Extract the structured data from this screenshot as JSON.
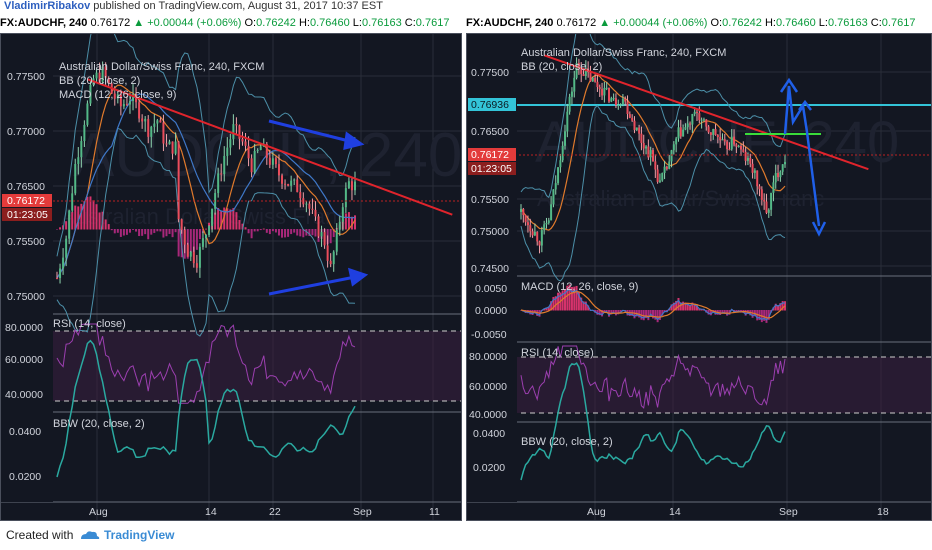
{
  "publish_bar": {
    "author": "VladimirRibakov",
    "text": "published on TradingView.com, August 31, 2017 10:37 EST"
  },
  "footer": {
    "created_with": "Created with",
    "brand": "TradingView"
  },
  "panels": [
    {
      "header": {
        "symbol": "FX:AUDCHF, 240",
        "price": "0.76172",
        "change": "+0.00044 (+0.06%)",
        "o_label": "O:",
        "o": "0.76242",
        "h_label": "H:",
        "h": "0.76460",
        "l_label": "L:",
        "l": "0.76163",
        "c_label": "C:",
        "c": "0.7617"
      },
      "legend": [
        "Australian Dollar/Swiss Franc, 240, FXCM",
        "BB (20, close, 2)",
        "MACD (12, 26, close, 9)"
      ],
      "watermark": "AUDCHF, 240",
      "watermark2": "Australian Dollar/Swiss Franc",
      "price_axis": [
        "0.77500",
        "0.77000",
        "0.76500",
        "0.76172",
        "0.75500",
        "0.75000"
      ],
      "price_tag": "0.76172",
      "timer": "01:23:05",
      "rsi": {
        "label": "RSI (14, close)",
        "axis": [
          "80.0000",
          "60.0000",
          "40.0000"
        ]
      },
      "bbw": {
        "label": "BBW (20, close, 2)",
        "axis": [
          "0.0400",
          "0.0200"
        ]
      },
      "time_axis": [
        "Aug",
        "14",
        "22",
        "Sep",
        "11"
      ]
    },
    {
      "header": {
        "symbol": "FX:AUDCHF, 240",
        "price": "0.76172",
        "change": "+0.00044 (+0.06%)",
        "o_label": "O:",
        "o": "0.76242",
        "h_label": "H:",
        "h": "0.76460",
        "l_label": "L:",
        "l": "0.76163",
        "c_label": "C:",
        "c": "0.7617"
      },
      "legend": [
        "Australian Dollar/Swiss Franc, 240, FXCM",
        "BB (20, close, 2)"
      ],
      "watermark": "AUDCHF, 240",
      "watermark2": "Australian Dollar/Swiss Franc",
      "price_axis": [
        "0.77500",
        "0.76936",
        "0.76500",
        "0.76172",
        "0.75500",
        "0.75000",
        "0.74500"
      ],
      "price_tag": "0.76172",
      "level_tag": "0.76936",
      "timer": "01:23:05",
      "macd": {
        "label": "MACD (12, 26, close, 9)",
        "axis": [
          "0.0050",
          "0.0000",
          "-0.0050"
        ]
      },
      "rsi": {
        "label": "RSI (14, close)",
        "axis": [
          "80.0000",
          "60.0000",
          "40.0000"
        ]
      },
      "bbw": {
        "label": "BBW (20, close, 2)",
        "axis": [
          "0.0400",
          "0.0200"
        ]
      },
      "time_axis": [
        "Aug",
        "14",
        "Sep",
        "18"
      ]
    }
  ],
  "chart_data": [
    {
      "type": "candlestick",
      "title": "Australian Dollar/Swiss Franc, 240, FXCM",
      "symbol": "FX:AUDCHF",
      "timeframe": "240",
      "ylim": [
        0.7475,
        0.7785
      ],
      "last_price": 0.76172,
      "x_ticks": [
        "Aug",
        "14",
        "22",
        "Sep",
        "11"
      ],
      "price_path": [
        [
          0,
          0.7515
        ],
        [
          3,
          0.756
        ],
        [
          6,
          0.764
        ],
        [
          9,
          0.769
        ],
        [
          12,
          0.7735
        ],
        [
          15,
          0.7742
        ],
        [
          18,
          0.772
        ],
        [
          21,
          0.7705
        ],
        [
          24,
          0.7715
        ],
        [
          27,
          0.77
        ],
        [
          30,
          0.768
        ],
        [
          33,
          0.769
        ],
        [
          36,
          0.766
        ],
        [
          39,
          0.766
        ],
        [
          40,
          0.758
        ],
        [
          43,
          0.7545
        ],
        [
          46,
          0.7535
        ],
        [
          49,
          0.7565
        ],
        [
          52,
          0.761
        ],
        [
          55,
          0.765
        ],
        [
          58,
          0.768
        ],
        [
          61,
          0.7665
        ],
        [
          64,
          0.764
        ],
        [
          67,
          0.766
        ],
        [
          70,
          0.7645
        ],
        [
          73,
          0.763
        ],
        [
          76,
          0.762
        ],
        [
          79,
          0.7615
        ],
        [
          82,
          0.76
        ],
        [
          85,
          0.7575
        ],
        [
          88,
          0.7555
        ],
        [
          90,
          0.7525
        ],
        [
          92,
          0.756
        ],
        [
          94,
          0.76
        ],
        [
          96,
          0.762
        ],
        [
          98,
          0.7617
        ]
      ],
      "trendline": [
        [
          10,
          0.7735
        ],
        [
          130,
          0.7585
        ]
      ],
      "annotations": [
        "blue arrow converging from upper right",
        "blue arrow converging from lower right"
      ]
    },
    {
      "type": "candlestick",
      "title": "Australian Dollar/Swiss Franc, 240, FXCM",
      "symbol": "FX:AUDCHF",
      "timeframe": "240",
      "ylim": [
        0.745,
        0.779
      ],
      "last_price": 0.76172,
      "horizontal_level": 0.76936,
      "x_ticks": [
        "Aug",
        "14",
        "Sep",
        "18"
      ],
      "price_path": [
        [
          0,
          0.754
        ],
        [
          4,
          0.752
        ],
        [
          8,
          0.75
        ],
        [
          12,
          0.753
        ],
        [
          16,
          0.76
        ],
        [
          20,
          0.768
        ],
        [
          24,
          0.7745
        ],
        [
          28,
          0.7735
        ],
        [
          32,
          0.772
        ],
        [
          36,
          0.771
        ],
        [
          40,
          0.7695
        ],
        [
          44,
          0.77
        ],
        [
          48,
          0.767
        ],
        [
          52,
          0.764
        ],
        [
          56,
          0.762
        ],
        [
          60,
          0.758
        ],
        [
          64,
          0.761
        ],
        [
          68,
          0.765
        ],
        [
          72,
          0.766
        ],
        [
          76,
          0.768
        ],
        [
          80,
          0.7655
        ],
        [
          84,
          0.765
        ],
        [
          88,
          0.763
        ],
        [
          92,
          0.764
        ],
        [
          96,
          0.762
        ],
        [
          100,
          0.76
        ],
        [
          104,
          0.756
        ],
        [
          106,
          0.7535
        ],
        [
          110,
          0.759
        ],
        [
          114,
          0.7617
        ]
      ],
      "trendline": [
        [
          10,
          0.776
        ],
        [
          150,
          0.76
        ]
      ],
      "annotations": [
        "green projected level",
        "blue projection arrows up then down"
      ]
    }
  ]
}
